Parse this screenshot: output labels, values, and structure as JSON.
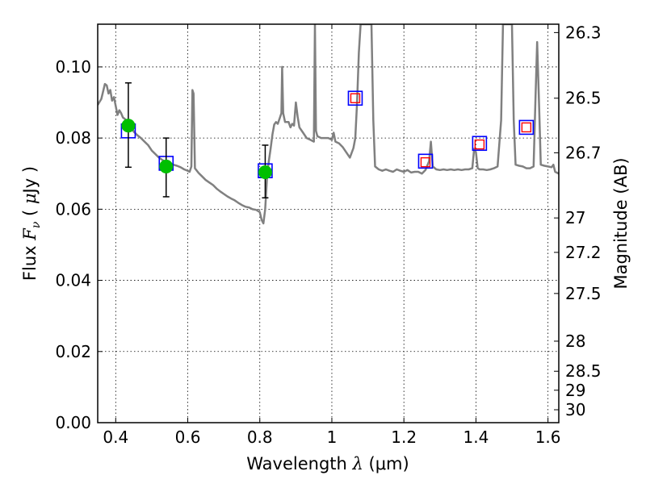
{
  "chart_data": {
    "type": "scatter",
    "xlabel": {
      "prefix": "Wavelength  ",
      "symbol": "λ",
      "units": " (μm)"
    },
    "ylabel": {
      "prefix": "Flux  ",
      "symbol": "F",
      "subscript": "ν",
      "units_open": "  ( ",
      "units_mu": "μ",
      "units_rest": "Jy )"
    },
    "y2label": "Magnitude (AB)",
    "xlim": [
      0.35,
      1.63
    ],
    "ylim": [
      0.0,
      0.112
    ],
    "grid": true,
    "x_ticks": [
      {
        "value": 0.4,
        "label": "0.4"
      },
      {
        "value": 0.6,
        "label": "0.6"
      },
      {
        "value": 0.8,
        "label": "0.8"
      },
      {
        "value": 1.0,
        "label": "1"
      },
      {
        "value": 1.2,
        "label": "1.2"
      },
      {
        "value": 1.4,
        "label": "1.4"
      },
      {
        "value": 1.6,
        "label": "1.6"
      }
    ],
    "y_ticks": [
      {
        "value": 0.0,
        "label": "0.00"
      },
      {
        "value": 0.02,
        "label": "0.02"
      },
      {
        "value": 0.04,
        "label": "0.04"
      },
      {
        "value": 0.06,
        "label": "0.06"
      },
      {
        "value": 0.08,
        "label": "0.08"
      },
      {
        "value": 0.1,
        "label": "0.10"
      }
    ],
    "y2_ticks": [
      {
        "value": 26.3,
        "label": "26.3"
      },
      {
        "value": 26.5,
        "label": "26.5"
      },
      {
        "value": 26.7,
        "label": "26.7"
      },
      {
        "value": 27.0,
        "label": "27"
      },
      {
        "value": 27.2,
        "label": "27.2"
      },
      {
        "value": 27.5,
        "label": "27.5"
      },
      {
        "value": 28.0,
        "label": "28"
      },
      {
        "value": 28.5,
        "label": "28.5"
      },
      {
        "value": 29.0,
        "label": "29"
      },
      {
        "value": 30.0,
        "label": "30"
      }
    ],
    "series": [
      {
        "kind": "line",
        "color": "#808080",
        "points": [
          [
            0.35,
            0.0893
          ],
          [
            0.36,
            0.091
          ],
          [
            0.37,
            0.0952
          ],
          [
            0.375,
            0.0948
          ],
          [
            0.38,
            0.0925
          ],
          [
            0.385,
            0.0935
          ],
          [
            0.39,
            0.0905
          ],
          [
            0.395,
            0.0915
          ],
          [
            0.4,
            0.089
          ],
          [
            0.405,
            0.0865
          ],
          [
            0.41,
            0.0878
          ],
          [
            0.415,
            0.087
          ],
          [
            0.42,
            0.0858
          ],
          [
            0.43,
            0.085
          ],
          [
            0.44,
            0.084
          ],
          [
            0.45,
            0.0818
          ],
          [
            0.46,
            0.0808
          ],
          [
            0.47,
            0.08
          ],
          [
            0.48,
            0.079
          ],
          [
            0.49,
            0.078
          ],
          [
            0.5,
            0.0765
          ],
          [
            0.51,
            0.0755
          ],
          [
            0.52,
            0.0745
          ],
          [
            0.53,
            0.0738
          ],
          [
            0.54,
            0.073
          ],
          [
            0.55,
            0.0728
          ],
          [
            0.56,
            0.0725
          ],
          [
            0.57,
            0.0722
          ],
          [
            0.58,
            0.0718
          ],
          [
            0.59,
            0.0712
          ],
          [
            0.6,
            0.0708
          ],
          [
            0.605,
            0.0705
          ],
          [
            0.61,
            0.072
          ],
          [
            0.613,
            0.0935
          ],
          [
            0.616,
            0.0925
          ],
          [
            0.62,
            0.0715
          ],
          [
            0.63,
            0.0702
          ],
          [
            0.64,
            0.0692
          ],
          [
            0.65,
            0.0682
          ],
          [
            0.66,
            0.0675
          ],
          [
            0.67,
            0.0668
          ],
          [
            0.68,
            0.0658
          ],
          [
            0.69,
            0.065
          ],
          [
            0.7,
            0.0643
          ],
          [
            0.71,
            0.0636
          ],
          [
            0.72,
            0.063
          ],
          [
            0.73,
            0.0625
          ],
          [
            0.74,
            0.0618
          ],
          [
            0.75,
            0.0612
          ],
          [
            0.76,
            0.0607
          ],
          [
            0.77,
            0.0605
          ],
          [
            0.78,
            0.06
          ],
          [
            0.79,
            0.0598
          ],
          [
            0.8,
            0.0592
          ],
          [
            0.805,
            0.057
          ],
          [
            0.81,
            0.056
          ],
          [
            0.815,
            0.06
          ],
          [
            0.82,
            0.069
          ],
          [
            0.825,
            0.0735
          ],
          [
            0.83,
            0.077
          ],
          [
            0.835,
            0.081
          ],
          [
            0.84,
            0.0838
          ],
          [
            0.845,
            0.0845
          ],
          [
            0.85,
            0.084
          ],
          [
            0.855,
            0.0855
          ],
          [
            0.86,
            0.087
          ],
          [
            0.862,
            0.1
          ],
          [
            0.865,
            0.087
          ],
          [
            0.87,
            0.0845
          ],
          [
            0.88,
            0.0845
          ],
          [
            0.885,
            0.083
          ],
          [
            0.89,
            0.084
          ],
          [
            0.895,
            0.0835
          ],
          [
            0.9,
            0.09
          ],
          [
            0.905,
            0.086
          ],
          [
            0.91,
            0.083
          ],
          [
            0.92,
            0.0815
          ],
          [
            0.93,
            0.08
          ],
          [
            0.94,
            0.0795
          ],
          [
            0.95,
            0.079
          ],
          [
            0.953,
            0.112
          ],
          [
            0.956,
            0.082
          ],
          [
            0.96,
            0.0805
          ],
          [
            0.97,
            0.08
          ],
          [
            0.98,
            0.08
          ],
          [
            0.99,
            0.08
          ],
          [
            1.0,
            0.0795
          ],
          [
            1.005,
            0.0815
          ],
          [
            1.01,
            0.079
          ],
          [
            1.02,
            0.0785
          ],
          [
            1.03,
            0.0775
          ],
          [
            1.04,
            0.076
          ],
          [
            1.05,
            0.0745
          ],
          [
            1.06,
            0.0772
          ],
          [
            1.065,
            0.08
          ],
          [
            1.07,
            0.09
          ],
          [
            1.075,
            0.104
          ],
          [
            1.08,
            0.112
          ],
          [
            1.11,
            0.112
          ],
          [
            1.115,
            0.085
          ],
          [
            1.12,
            0.072
          ],
          [
            1.13,
            0.0712
          ],
          [
            1.14,
            0.0708
          ],
          [
            1.15,
            0.0712
          ],
          [
            1.16,
            0.0708
          ],
          [
            1.17,
            0.0705
          ],
          [
            1.18,
            0.0712
          ],
          [
            1.19,
            0.0708
          ],
          [
            1.2,
            0.0705
          ],
          [
            1.21,
            0.071
          ],
          [
            1.22,
            0.0703
          ],
          [
            1.23,
            0.0705
          ],
          [
            1.24,
            0.0705
          ],
          [
            1.25,
            0.07
          ],
          [
            1.26,
            0.071
          ],
          [
            1.27,
            0.0735
          ],
          [
            1.275,
            0.079
          ],
          [
            1.28,
            0.072
          ],
          [
            1.29,
            0.0712
          ],
          [
            1.3,
            0.071
          ],
          [
            1.31,
            0.0712
          ],
          [
            1.32,
            0.071
          ],
          [
            1.33,
            0.0712
          ],
          [
            1.34,
            0.071
          ],
          [
            1.35,
            0.0712
          ],
          [
            1.36,
            0.071
          ],
          [
            1.37,
            0.0712
          ],
          [
            1.38,
            0.0712
          ],
          [
            1.39,
            0.0715
          ],
          [
            1.395,
            0.077
          ],
          [
            1.4,
            0.076
          ],
          [
            1.405,
            0.0715
          ],
          [
            1.41,
            0.0712
          ],
          [
            1.42,
            0.0712
          ],
          [
            1.43,
            0.071
          ],
          [
            1.44,
            0.0712
          ],
          [
            1.45,
            0.0715
          ],
          [
            1.46,
            0.072
          ],
          [
            1.47,
            0.085
          ],
          [
            1.475,
            0.112
          ],
          [
            1.5,
            0.112
          ],
          [
            1.505,
            0.085
          ],
          [
            1.51,
            0.0725
          ],
          [
            1.52,
            0.0722
          ],
          [
            1.53,
            0.072
          ],
          [
            1.54,
            0.0715
          ],
          [
            1.55,
            0.0715
          ],
          [
            1.56,
            0.072
          ],
          [
            1.565,
            0.09
          ],
          [
            1.57,
            0.107
          ],
          [
            1.575,
            0.09
          ],
          [
            1.58,
            0.0725
          ],
          [
            1.59,
            0.0722
          ],
          [
            1.6,
            0.072
          ],
          [
            1.61,
            0.0718
          ],
          [
            1.615,
            0.0725
          ],
          [
            1.62,
            0.0705
          ],
          [
            1.63,
            0.07
          ]
        ]
      },
      {
        "kind": "blue-open-squares",
        "color": "#0000ff",
        "points": [
          [
            0.435,
            0.082
          ],
          [
            0.54,
            0.0729
          ],
          [
            0.815,
            0.0708
          ],
          [
            1.065,
            0.0912
          ],
          [
            1.26,
            0.0735
          ],
          [
            1.41,
            0.0785
          ],
          [
            1.54,
            0.083
          ]
        ]
      },
      {
        "kind": "red-open-squares",
        "color": "#ff0000",
        "points": [
          [
            1.065,
            0.0912
          ],
          [
            1.26,
            0.0732
          ],
          [
            1.41,
            0.0782
          ],
          [
            1.54,
            0.083
          ]
        ]
      },
      {
        "kind": "green-filled-circles-with-errorbars",
        "color": "#00bf00",
        "error_color": "#000000",
        "points": [
          {
            "x": 0.435,
            "y": 0.0835,
            "ylo": 0.0718,
            "yhi": 0.0955
          },
          {
            "x": 0.54,
            "y": 0.072,
            "ylo": 0.0635,
            "yhi": 0.08
          },
          {
            "x": 0.815,
            "y": 0.0704,
            "ylo": 0.0632,
            "yhi": 0.078
          }
        ]
      }
    ]
  }
}
